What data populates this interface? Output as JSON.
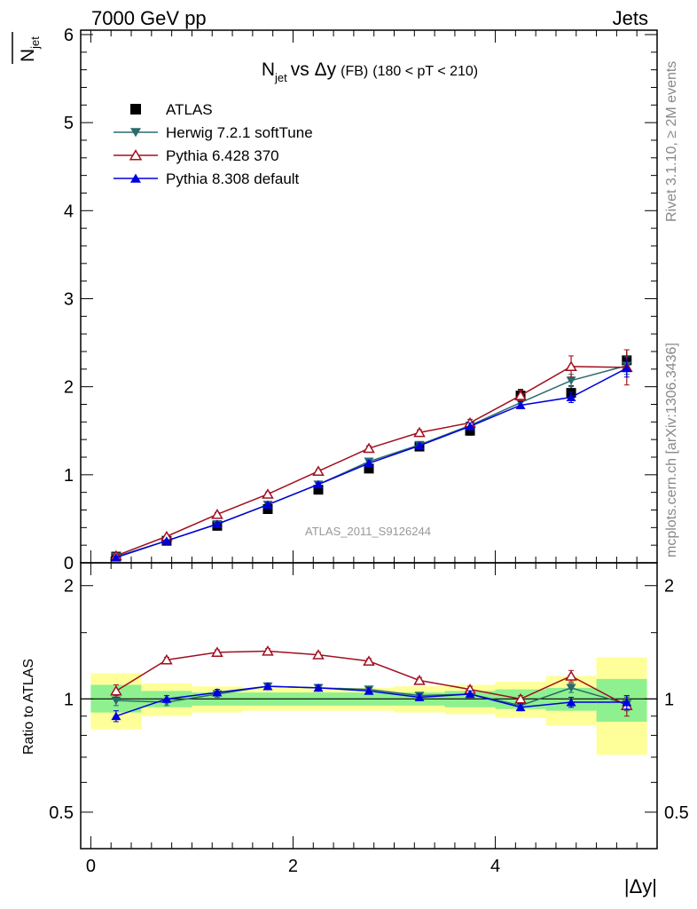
{
  "header": {
    "left": "7000 GeV pp",
    "right": "Jets"
  },
  "side_labels": {
    "top": "Rivet 3.1.10, ≥ 2M events",
    "bottom": "mcplots.cern.ch [arXiv:1306.3436]"
  },
  "watermark": "ATLAS_2011_S9126244",
  "chart_data": [
    {
      "type": "line",
      "title_parts": {
        "n": "N",
        "sub": "jet",
        "vs": "vs Δy",
        "fb": "(FB)",
        "cut": "(180 < pT < 210)"
      },
      "ylabel": {
        "n": "N",
        "sub": "jet"
      },
      "xlim": [
        -0.1,
        5.6
      ],
      "ylim": [
        0,
        6.05
      ],
      "y_ticks": [
        0,
        1,
        2,
        3,
        4,
        5,
        6
      ],
      "y_tick_labels": [
        "0",
        "1",
        "2",
        "3",
        "4",
        "5",
        "6"
      ],
      "x": [
        0.25,
        0.75,
        1.25,
        1.75,
        2.25,
        2.75,
        3.25,
        3.75,
        4.25,
        4.75,
        5.3
      ],
      "series": [
        {
          "name": "ATLAS",
          "color": "#000000",
          "marker": "square",
          "values": [
            0.07,
            0.25,
            0.42,
            0.61,
            0.83,
            1.07,
            1.32,
            1.5,
            1.9,
            1.93,
            2.3
          ],
          "errors": [
            0.02,
            0.02,
            0.03,
            0.03,
            0.04,
            0.04,
            0.04,
            0.05,
            0.07,
            0.08,
            0.12
          ]
        },
        {
          "name": "Herwig 7.2.1 softTune",
          "color": "#2a6b6b",
          "marker": "triangle-down",
          "values": [
            0.07,
            0.25,
            0.44,
            0.66,
            0.89,
            1.15,
            1.34,
            1.56,
            1.82,
            2.07,
            2.24
          ],
          "errors": [
            0.01,
            0.01,
            0.02,
            0.02,
            0.02,
            0.03,
            0.03,
            0.04,
            0.05,
            0.07,
            0.1
          ]
        },
        {
          "name": "Pythia 6.428 370",
          "color": "#a01020",
          "marker": "triangle-open",
          "values": [
            0.08,
            0.3,
            0.55,
            0.78,
            1.04,
            1.3,
            1.48,
            1.59,
            1.9,
            2.23,
            2.22
          ],
          "errors": [
            0.01,
            0.01,
            0.02,
            0.02,
            0.02,
            0.03,
            0.03,
            0.04,
            0.06,
            0.12,
            0.2
          ]
        },
        {
          "name": "Pythia 8.308 default",
          "color": "#0000dd",
          "marker": "triangle-up",
          "values": [
            0.06,
            0.25,
            0.44,
            0.66,
            0.89,
            1.13,
            1.33,
            1.55,
            1.79,
            1.88,
            2.21
          ],
          "errors": [
            0.01,
            0.01,
            0.02,
            0.02,
            0.02,
            0.03,
            0.03,
            0.04,
            0.04,
            0.06,
            0.1
          ]
        }
      ]
    },
    {
      "type": "line",
      "ylabel": "Ratio to ATLAS",
      "xlabel": "|Δy|",
      "xlim": [
        -0.1,
        5.6
      ],
      "ylim": [
        0.4,
        2.3
      ],
      "y_scale": "log",
      "y_ticks": [
        0.5,
        1,
        2
      ],
      "y_tick_labels": [
        "0.5",
        "1",
        "2"
      ],
      "x_ticks": [
        0,
        2,
        4
      ],
      "x_tick_labels": [
        "0",
        "2",
        "4"
      ],
      "bands": {
        "edges": [
          0.0,
          0.5,
          1.0,
          1.5,
          2.0,
          2.5,
          3.0,
          3.5,
          4.0,
          4.5,
          5.0,
          5.5
        ],
        "inner": [
          [
            0.92,
            1.09
          ],
          [
            0.95,
            1.05
          ],
          [
            0.96,
            1.04
          ],
          [
            0.96,
            1.04
          ],
          [
            0.96,
            1.04
          ],
          [
            0.96,
            1.04
          ],
          [
            0.96,
            1.04
          ],
          [
            0.95,
            1.05
          ],
          [
            0.94,
            1.06
          ],
          [
            0.93,
            1.07
          ],
          [
            0.87,
            1.13
          ]
        ],
        "outer": [
          [
            0.83,
            1.17
          ],
          [
            0.9,
            1.1
          ],
          [
            0.92,
            1.08
          ],
          [
            0.93,
            1.07
          ],
          [
            0.93,
            1.07
          ],
          [
            0.93,
            1.07
          ],
          [
            0.92,
            1.08
          ],
          [
            0.91,
            1.09
          ],
          [
            0.89,
            1.11
          ],
          [
            0.85,
            1.15
          ],
          [
            0.71,
            1.29
          ]
        ],
        "inner_color": "#8ff08f",
        "outer_color": "#ffff99"
      },
      "x": [
        0.25,
        0.75,
        1.25,
        1.75,
        2.25,
        2.75,
        3.25,
        3.75,
        4.25,
        4.75,
        5.3
      ],
      "series": [
        {
          "name": "Herwig 7.2.1 softTune",
          "color": "#2a6b6b",
          "marker": "triangle-down",
          "values": [
            0.99,
            0.98,
            1.03,
            1.08,
            1.07,
            1.06,
            1.02,
            1.03,
            0.96,
            1.07,
            0.97
          ],
          "errors": [
            0.03,
            0.02,
            0.02,
            0.02,
            0.02,
            0.02,
            0.02,
            0.02,
            0.02,
            0.03,
            0.04
          ]
        },
        {
          "name": "Pythia 6.428 370",
          "color": "#a01020",
          "marker": "triangle-open",
          "values": [
            1.05,
            1.27,
            1.33,
            1.34,
            1.31,
            1.26,
            1.12,
            1.06,
            1.0,
            1.15,
            0.96
          ],
          "errors": [
            0.04,
            0.02,
            0.02,
            0.02,
            0.02,
            0.02,
            0.02,
            0.02,
            0.02,
            0.04,
            0.06
          ]
        },
        {
          "name": "Pythia 8.308 default",
          "color": "#0000dd",
          "marker": "triangle-up",
          "values": [
            0.9,
            1.0,
            1.04,
            1.08,
            1.07,
            1.05,
            1.01,
            1.03,
            0.95,
            0.98,
            0.98
          ],
          "errors": [
            0.03,
            0.02,
            0.02,
            0.02,
            0.02,
            0.02,
            0.02,
            0.02,
            0.02,
            0.03,
            0.04
          ]
        }
      ]
    }
  ]
}
